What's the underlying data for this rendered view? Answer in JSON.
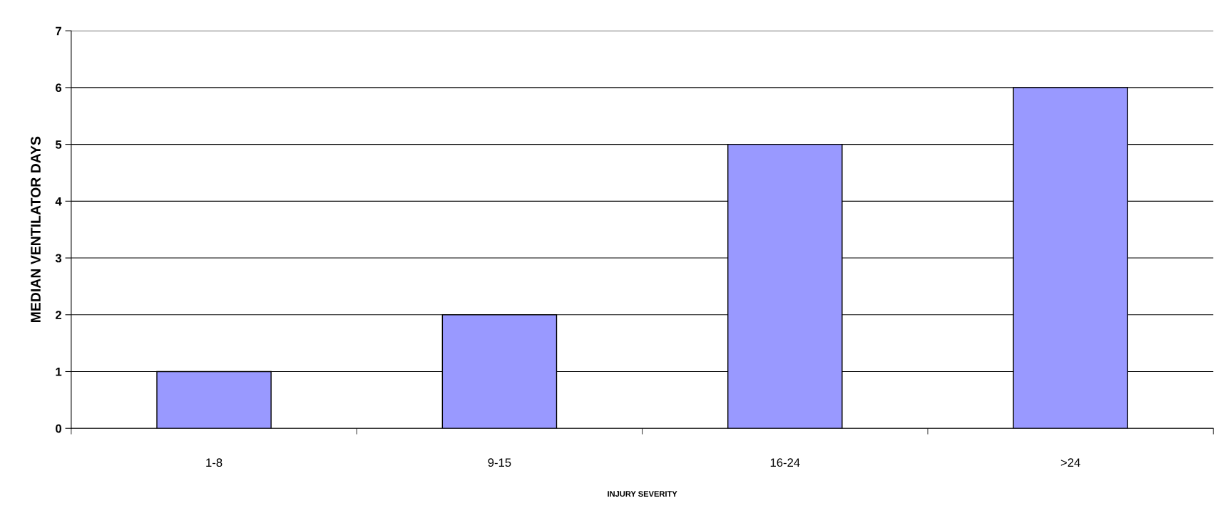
{
  "chart_data": {
    "type": "bar",
    "xlabel": "INJURY SEVERITY",
    "ylabel": "MEDIAN VENTILATOR DAYS",
    "categories": [
      "1-8",
      "9-15",
      "16-24",
      ">24"
    ],
    "values": [
      1,
      2,
      5,
      6
    ],
    "color": "#9999ff",
    "ylim": [
      0,
      7
    ],
    "yticks": [
      0,
      1,
      2,
      3,
      4,
      5,
      6,
      7
    ],
    "grid": "y"
  }
}
